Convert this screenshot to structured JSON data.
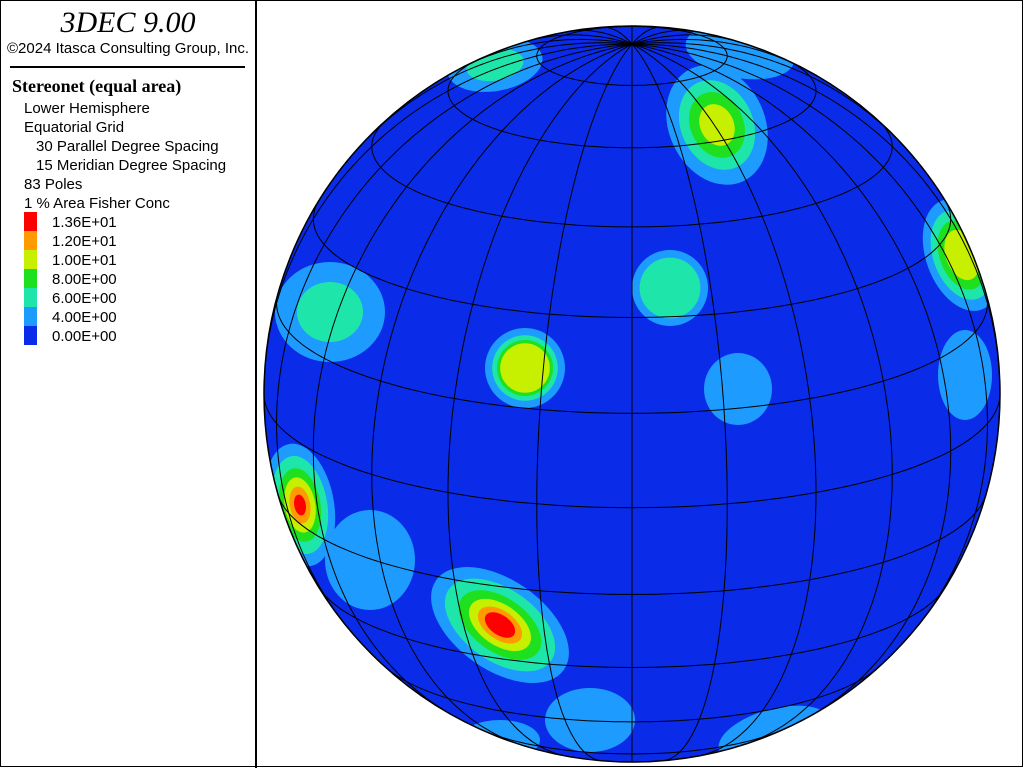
{
  "header": {
    "title": "3DEC 9.00",
    "copyright": "©2024 Itasca Consulting Group, Inc."
  },
  "legend": {
    "title": "Stereonet (equal area)",
    "lines": [
      {
        "text": "Lower Hemisphere",
        "indent": false
      },
      {
        "text": "Equatorial Grid",
        "indent": false
      },
      {
        "text": "30 Parallel Degree Spacing",
        "indent": true
      },
      {
        "text": "15 Meridian Degree Spacing",
        "indent": true
      },
      {
        "text": "83 Poles",
        "indent": false
      },
      {
        "text": "1 % Area Fisher Conc",
        "indent": false
      }
    ],
    "scale": [
      {
        "label": "1.36E+01",
        "color": "#ff0000"
      },
      {
        "label": "1.20E+01",
        "color": "#ff9a00"
      },
      {
        "label": "1.00E+01",
        "color": "#c6f000"
      },
      {
        "label": "8.00E+00",
        "color": "#1ee01e"
      },
      {
        "label": "6.00E+00",
        "color": "#1ee6aa"
      },
      {
        "label": "4.00E+00",
        "color": "#1e9bff"
      },
      {
        "label": "0.00E+00",
        "color": "#0a2ce8"
      }
    ]
  }
}
